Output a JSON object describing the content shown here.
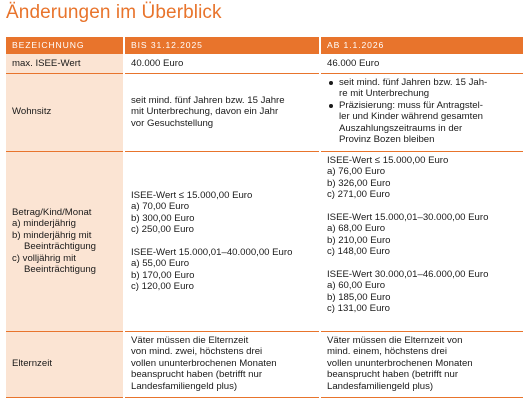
{
  "title": "Änderungen im Überblick",
  "headers": [
    "BEZEICHNUNG",
    "BIS 31.12.2025",
    "AB 1.1.2026"
  ],
  "rows": {
    "isee": {
      "label": "max. ISEE-Wert",
      "old": "40.000 Euro",
      "new": "46.000 Euro"
    },
    "wohnsitz": {
      "label": "Wohnsitz",
      "old": [
        "seit mind. fünf Jahren bzw. 15 Jahre",
        "mit Unterbrechung, davon ein Jahr",
        "vor Gesuchstellung"
      ],
      "new_bullets": [
        [
          "seit mind. fünf Jahren bzw. 15 Jah-",
          "re mit Unterbrechung"
        ],
        [
          "Präzisierung: muss für Antragstel-",
          "ler und Kinder während gesamten",
          "Auszahlungszeitraums in der",
          "Provinz Bozen bleiben"
        ]
      ]
    },
    "betrag": {
      "label_lines": [
        "Betrag/Kind/Monat",
        "a) minderjährig",
        "b) minderjährig mit",
        "Beeinträchtigung",
        "c) volljährig mit",
        "Beeinträchtigung"
      ],
      "old_groups": [
        {
          "head": "ISEE-Wert ≤ 15.000,00 Euro",
          "items": [
            "a) 70,00 Euro",
            "b) 300,00 Euro",
            "c) 250,00 Euro"
          ]
        },
        {
          "head": "ISEE-Wert 15.000,01–40.000,00 Euro",
          "items": [
            "a) 55,00 Euro",
            "b) 170,00 Euro",
            "c) 120,00 Euro"
          ]
        }
      ],
      "new_groups": [
        {
          "head": "ISEE-Wert ≤ 15.000,00 Euro",
          "items": [
            "a) 76,00 Euro",
            "b) 326,00 Euro",
            "c) 271,00 Euro"
          ]
        },
        {
          "head": "ISEE-Wert 15.000,01–30.000,00 Euro",
          "items": [
            "a) 68,00 Euro",
            "b) 210,00 Euro",
            "c) 148,00 Euro"
          ]
        },
        {
          "head": "ISEE-Wert 30.000,01–46.000,00 Euro",
          "items": [
            "a) 60,00 Euro",
            "b) 185,00 Euro",
            "c) 131,00 Euro"
          ]
        }
      ]
    },
    "elternzeit": {
      "label": "Elternzeit",
      "old": [
        "Väter müssen die Elternzeit",
        "von mind. zwei, höchstens drei",
        "vollen ununterbrochenen Monaten",
        "beansprucht haben (betrifft nur",
        "Landesfamiliengeld plus)"
      ],
      "new": [
        "Väter müssen die Elternzeit von",
        "mind. einem, höchstens drei",
        "vollen ununterbrochenen Monaten",
        "beansprucht haben (betrifft nur",
        "Landesfamiliengeld plus)"
      ]
    }
  },
  "colors": {
    "accent": "#e8742c",
    "label_bg": "#fbe4d3",
    "text": "#1a1a1a"
  }
}
